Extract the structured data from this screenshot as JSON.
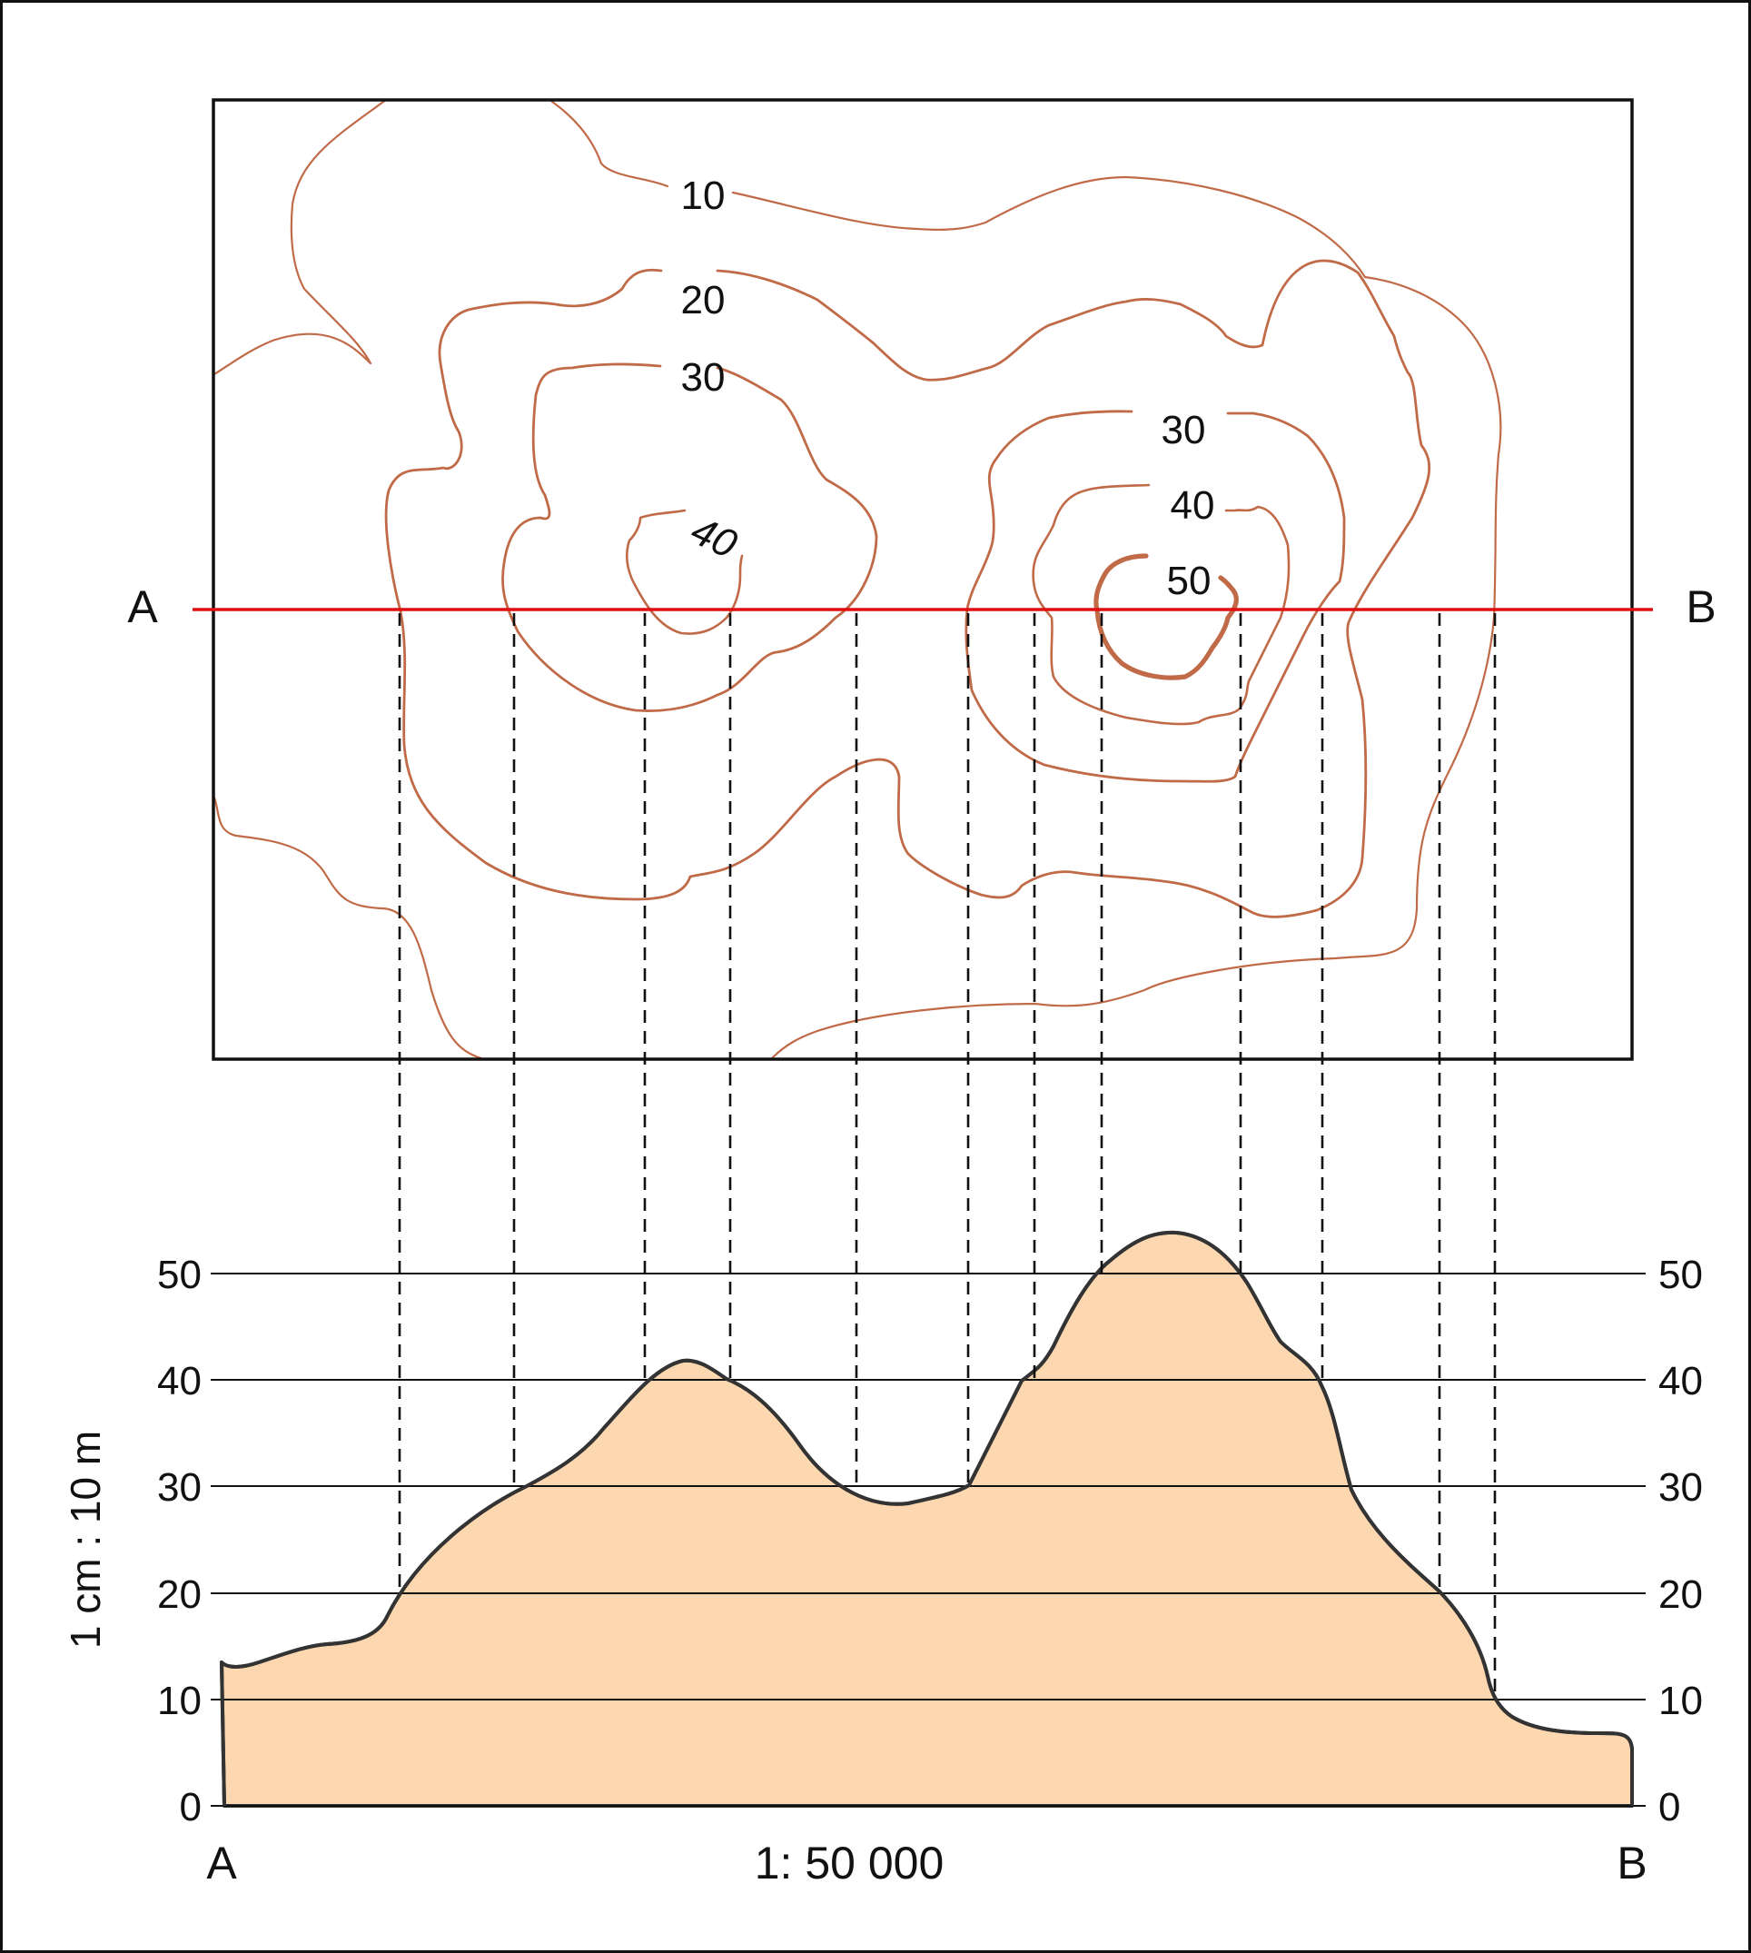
{
  "colors": {
    "contour": "#c06a48",
    "section_line": "#e01010",
    "profile_fill": "#fcd7b0",
    "profile_stroke": "#333333",
    "frame": "#111111"
  },
  "map": {
    "point_a": "A",
    "point_b": "B",
    "contour_labels": {
      "west_10": "10",
      "west_20": "20",
      "west_30": "30",
      "west_40": "40",
      "east_30": "30",
      "east_40": "40",
      "east_50": "50"
    }
  },
  "profile": {
    "scale_vertical": "1 cm : 10 m",
    "scale_horizontal": "1: 50 000",
    "label_a": "A",
    "label_b": "B",
    "axis_ticks": [
      "0",
      "10",
      "20",
      "30",
      "40",
      "50"
    ]
  }
}
